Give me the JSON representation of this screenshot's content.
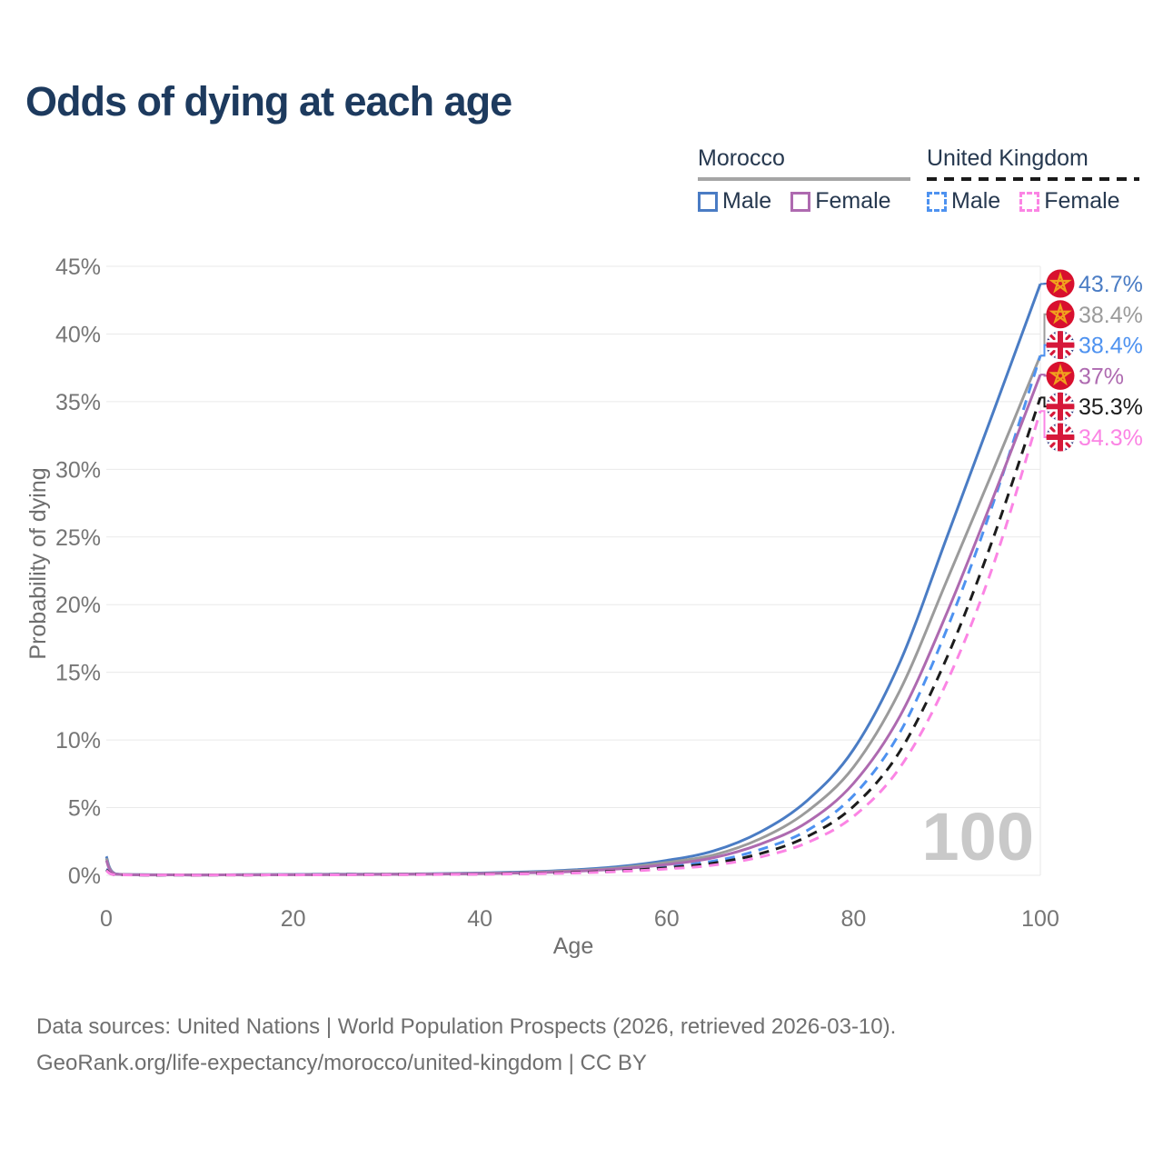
{
  "title": "Odds of dying at each age",
  "legend": {
    "groups": [
      {
        "label": "Morocco",
        "underline_style": "solid",
        "underline_color": "#a5a5a5",
        "items": [
          {
            "label": "Male",
            "color": "#4a7cc4",
            "dash": false
          },
          {
            "label": "Female",
            "color": "#ae6ab0",
            "dash": false
          }
        ]
      },
      {
        "label": "United Kingdom",
        "underline_style": "dashed",
        "underline_color": "#1a1a1a",
        "items": [
          {
            "label": "Male",
            "color": "#4e92f0",
            "dash": true
          },
          {
            "label": "Female",
            "color": "#fb84e4",
            "dash": true
          }
        ]
      }
    ]
  },
  "chart_data": {
    "type": "line",
    "title": "Odds of dying at each age",
    "xlabel": "Age",
    "ylabel": "Probability of dying",
    "xlim": [
      0,
      100
    ],
    "ylim": [
      0,
      45
    ],
    "x_ticks": [
      0,
      20,
      40,
      60,
      80,
      100
    ],
    "y_ticks": [
      0,
      5,
      10,
      15,
      20,
      25,
      30,
      35,
      40,
      45
    ],
    "y_tick_suffix": "%",
    "grid": "horizontal",
    "legend_position": "top-right",
    "watermark": "100",
    "ages": [
      0,
      1,
      5,
      10,
      15,
      20,
      25,
      30,
      35,
      40,
      45,
      50,
      55,
      60,
      65,
      70,
      75,
      80,
      85,
      90,
      95,
      100
    ],
    "series": [
      {
        "name": "Morocco Male",
        "country": "Morocco",
        "flag": "morocco",
        "color": "#4a7cc4",
        "dash": false,
        "end_label": "43.7%",
        "label_color": "#4a7cc4",
        "values": [
          1.4,
          0.1,
          0.04,
          0.03,
          0.05,
          0.07,
          0.08,
          0.09,
          0.12,
          0.17,
          0.25,
          0.4,
          0.65,
          1.1,
          1.8,
          3.2,
          5.5,
          9.3,
          15.8,
          25.0,
          34.3,
          43.7
        ]
      },
      {
        "name": "Morocco",
        "country": "Morocco",
        "flag": "morocco",
        "color": "#9b9b9b",
        "dash": false,
        "end_label": "38.4%",
        "label_color": "#9b9b9b",
        "values": [
          1.25,
          0.09,
          0.035,
          0.025,
          0.04,
          0.055,
          0.065,
          0.08,
          0.1,
          0.14,
          0.21,
          0.34,
          0.56,
          0.95,
          1.5,
          2.7,
          4.7,
          8.0,
          13.7,
          21.8,
          30.0,
          38.4
        ]
      },
      {
        "name": "United Kingdom Male",
        "country": "United Kingdom",
        "flag": "uk",
        "color": "#4e92f0",
        "dash": true,
        "end_label": "38.4%",
        "label_color": "#4e92f0",
        "values": [
          0.45,
          0.03,
          0.01,
          0.012,
          0.025,
          0.045,
          0.055,
          0.07,
          0.08,
          0.1,
          0.15,
          0.24,
          0.4,
          0.68,
          1.05,
          1.9,
          3.3,
          5.9,
          10.6,
          18.2,
          27.6,
          38.4
        ]
      },
      {
        "name": "Morocco Female",
        "country": "Morocco",
        "flag": "morocco",
        "color": "#ae6ab0",
        "dash": false,
        "end_label": "37%",
        "label_color": "#ae6ab0",
        "values": [
          1.1,
          0.08,
          0.03,
          0.02,
          0.03,
          0.04,
          0.05,
          0.07,
          0.09,
          0.13,
          0.18,
          0.29,
          0.48,
          0.8,
          1.3,
          2.3,
          3.9,
          6.8,
          11.8,
          19.4,
          28.0,
          37.0
        ]
      },
      {
        "name": "United Kingdom",
        "country": "United Kingdom",
        "flag": "uk",
        "color": "#1c1c1c",
        "dash": true,
        "end_label": "35.3%",
        "label_color": "#1c1c1c",
        "values": [
          0.4,
          0.028,
          0.01,
          0.01,
          0.02,
          0.035,
          0.045,
          0.055,
          0.07,
          0.09,
          0.13,
          0.2,
          0.33,
          0.56,
          0.9,
          1.6,
          2.85,
          5.1,
          9.2,
          16.1,
          25.0,
          35.3
        ]
      },
      {
        "name": "United Kingdom Female",
        "country": "United Kingdom",
        "flag": "uk",
        "color": "#fb84e4",
        "dash": true,
        "end_label": "34.3%",
        "label_color": "#fb84e4",
        "values": [
          0.35,
          0.025,
          0.009,
          0.009,
          0.015,
          0.025,
          0.035,
          0.045,
          0.06,
          0.08,
          0.11,
          0.17,
          0.28,
          0.47,
          0.75,
          1.35,
          2.4,
          4.35,
          8.0,
          14.3,
          23.0,
          34.3
        ]
      }
    ]
  },
  "footer": {
    "line1": "Data sources: United Nations | World Population Prospects (2026, retrieved 2026-03-10).",
    "line2": "GeoRank.org/life-expectancy/morocco/united-kingdom | CC BY"
  },
  "colors": {
    "title_text": "#1d3a5e",
    "legend_text": "#26384f",
    "tick_text": "#757575",
    "axis_title_text": "#6e6e6e",
    "gridline": "#eaeaea",
    "watermark": "#c9c9c9",
    "footer_text": "#6f6f6f",
    "morocco_flag_red": "#d8102e",
    "morocco_flag_star": "#f0a11e",
    "uk_flag_blue": "#28357d",
    "uk_flag_red": "#d6183a"
  }
}
